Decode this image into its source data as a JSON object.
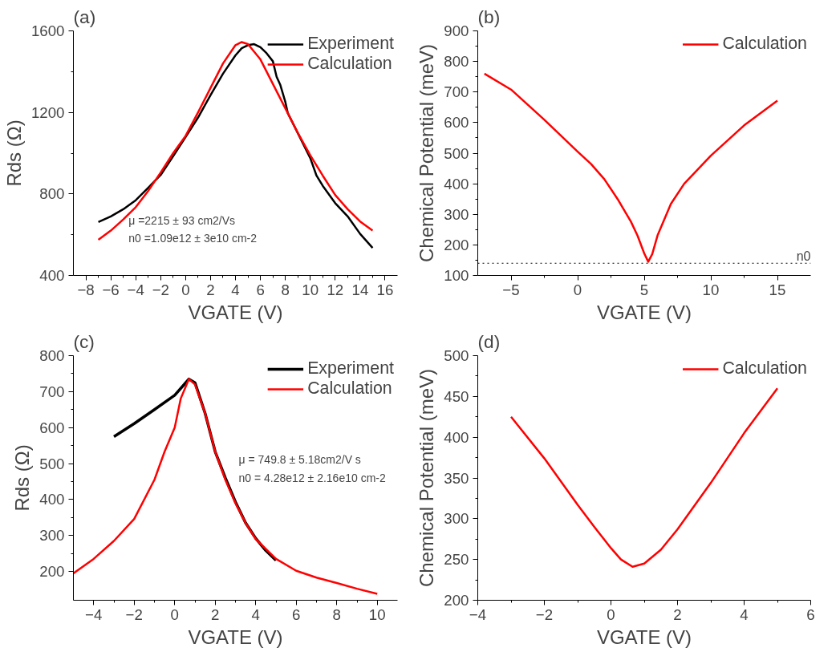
{
  "chart_data": [
    {
      "type": "line",
      "title": "(a)",
      "xlabel": "VGATE (V)",
      "ylabel": "Rds (Ω)",
      "xlim": [
        -9,
        17
      ],
      "xticks": [
        -8,
        -6,
        -4,
        -2,
        0,
        2,
        4,
        6,
        8,
        10,
        12,
        14,
        16
      ],
      "ylim": [
        400,
        1600
      ],
      "yticks": [
        400,
        800,
        1200,
        1600
      ],
      "grid": false,
      "legend": "top right",
      "line_style": "solid",
      "annotations": [
        "μ =2215 ± 93 cm2/Vs",
        "n0  =1.09e12 ± 3e10 cm-2"
      ],
      "series": [
        {
          "name": "Experiment",
          "color": "#000000",
          "x": [
            -7,
            -6,
            -5,
            -4,
            -3,
            -2,
            -1,
            0,
            1,
            2,
            3,
            4,
            4.5,
            5,
            5.5,
            6,
            6.5,
            7,
            7.3,
            7.6,
            8,
            8.2,
            10,
            10.5,
            11,
            12,
            13,
            14,
            15
          ],
          "values": [
            662,
            690,
            725,
            769,
            830,
            893,
            985,
            1079,
            1175,
            1285,
            1390,
            1480,
            1515,
            1530,
            1535,
            1520,
            1490,
            1451,
            1375,
            1334,
            1251,
            1196,
            976,
            890,
            840,
            755,
            690,
            604,
            535
          ]
        },
        {
          "name": "Calculation",
          "color": "#ff0000",
          "x": [
            -7,
            -6,
            -5,
            -4,
            -3,
            -2,
            -1,
            0,
            1,
            2,
            3,
            4,
            4.5,
            5,
            6,
            7,
            8,
            9,
            10,
            11,
            12,
            13,
            14,
            15
          ],
          "values": [
            575,
            620,
            675,
            735,
            815,
            905,
            1000,
            1085,
            1200,
            1320,
            1440,
            1530,
            1545,
            1535,
            1460,
            1340,
            1220,
            1100,
            990,
            890,
            795,
            725,
            665,
            620
          ]
        }
      ]
    },
    {
      "type": "line",
      "title": "(b)",
      "xlabel": "VGATE (V)",
      "ylabel": "Chemical Potential (meV)",
      "xlim": [
        -7.5,
        17.5
      ],
      "xticks": [
        -5,
        0,
        5,
        10,
        15
      ],
      "ylim": [
        100,
        900
      ],
      "yticks": [
        100,
        200,
        300,
        400,
        500,
        600,
        700,
        800,
        900
      ],
      "grid": false,
      "legend": "top right",
      "line_style": "solid",
      "ref_lines": [
        {
          "axis": "y",
          "value": 140,
          "label": "n0",
          "color": "#000000",
          "line_style": "dotted"
        }
      ],
      "series": [
        {
          "name": "Calculation",
          "color": "#ff0000",
          "x": [
            -7,
            -5,
            -2.5,
            0,
            1,
            2,
            3,
            4,
            4.5,
            5,
            5.3,
            5.6,
            6,
            7,
            8,
            10,
            12.5,
            15
          ],
          "values": [
            760,
            708,
            609,
            505,
            465,
            415,
            350,
            276,
            230,
            172,
            145,
            170,
            231,
            334,
            400,
            492,
            591,
            672
          ]
        }
      ]
    },
    {
      "type": "line",
      "title": "(c)",
      "xlabel": "VGATE (V)",
      "ylabel": "Rds (Ω)",
      "xlim": [
        -5,
        11
      ],
      "xticks": [
        -4,
        -2,
        0,
        2,
        4,
        6,
        8,
        10
      ],
      "ylim": [
        120,
        800
      ],
      "yticks": [
        200,
        300,
        400,
        500,
        600,
        700,
        800
      ],
      "grid": false,
      "legend": "top right",
      "line_style": "solid",
      "annotations": [
        "μ = 749.8 ± 5.18cm2/V s",
        "n0 = 4.28e12 ± 2.16e10 cm-2"
      ],
      "series": [
        {
          "name": "Experiment",
          "color": "#000000",
          "x": [
            -3,
            -2,
            -1,
            0,
            0.5,
            0.7,
            1,
            1.5,
            2,
            2.5,
            3,
            3.5,
            4,
            4.5,
            5
          ],
          "values": [
            575,
            611,
            650,
            690,
            722,
            735,
            725,
            640,
            533,
            460,
            393,
            335,
            292,
            258,
            231
          ]
        },
        {
          "name": "Calculation",
          "color": "#ff0000",
          "x": [
            -5,
            -4,
            -3,
            -2,
            -1,
            -0.5,
            0,
            0.3,
            0.7,
            1,
            1.5,
            2,
            2.5,
            3,
            3.5,
            4,
            5,
            6,
            7,
            8,
            9,
            10
          ],
          "values": [
            195,
            235,
            285,
            346,
            455,
            533,
            600,
            681,
            735,
            720,
            640,
            533,
            455,
            390,
            335,
            290,
            235,
            202,
            183,
            168,
            152,
            138
          ]
        }
      ]
    },
    {
      "type": "line",
      "title": "(d)",
      "xlabel": "VGATE (V)",
      "ylabel": "Chemical Potential (meV)",
      "xlim": [
        -4,
        6
      ],
      "xticks": [
        -4,
        -2,
        0,
        2,
        4,
        6
      ],
      "ylim": [
        200,
        500
      ],
      "yticks": [
        200,
        250,
        300,
        350,
        400,
        450,
        500
      ],
      "grid": false,
      "legend": "top right",
      "line_style": "solid",
      "series": [
        {
          "name": "Calculation",
          "color": "#ff0000",
          "x": [
            -3,
            -2,
            -1,
            -0.5,
            0,
            0.3,
            0.65,
            1,
            1.5,
            2,
            3,
            4,
            5
          ],
          "values": [
            425,
            374,
            317,
            290,
            264,
            250,
            241,
            245,
            262,
            287,
            344,
            405,
            460
          ]
        }
      ]
    }
  ]
}
